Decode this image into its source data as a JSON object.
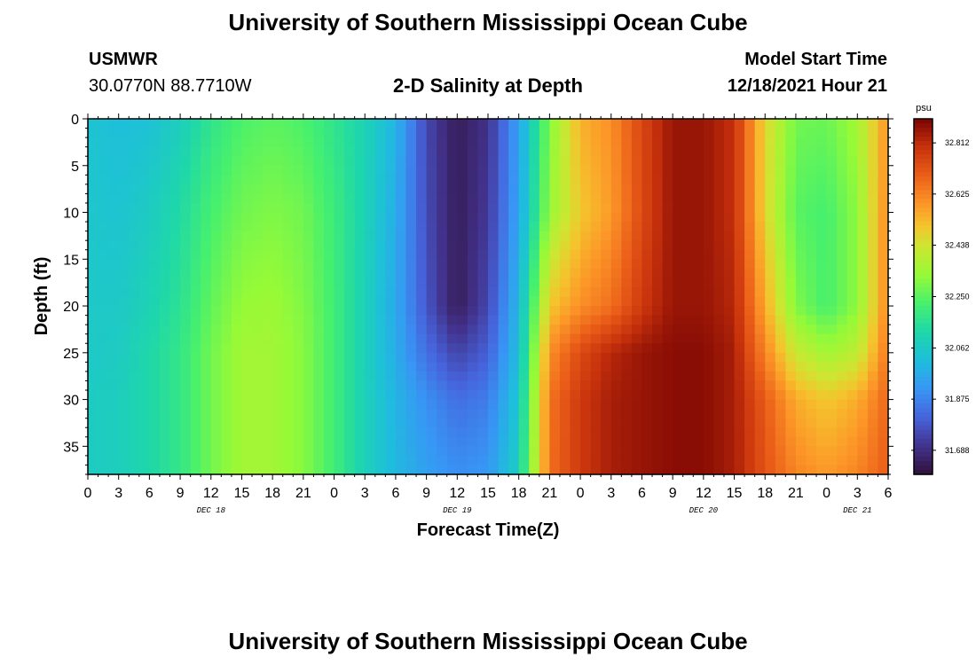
{
  "page": {
    "title_top": "University of Southern Mississippi Ocean Cube",
    "title_bottom": "University of Southern Mississippi Ocean Cube",
    "station": "USMWR",
    "coords": "30.0770N  88.7710W",
    "subtitle": "2-D Salinity at Depth",
    "model_start_label": "Model Start Time",
    "model_start_value": "12/18/2021 Hour 21"
  },
  "chart_data": {
    "type": "heatmap",
    "title": "2-D Salinity at Depth",
    "xlabel": "Forecast Time(Z)",
    "ylabel": "Depth (ft)",
    "x_tick_labels": [
      "0",
      "3",
      "6",
      "9",
      "12",
      "15",
      "18",
      "21",
      "0",
      "3",
      "6",
      "9",
      "12",
      "15",
      "18",
      "21",
      "0",
      "3",
      "6",
      "9",
      "12",
      "15",
      "18",
      "21",
      "0",
      "3",
      "6"
    ],
    "x_range_hours": [
      0,
      78
    ],
    "date_labels": [
      {
        "label": "DEC 18",
        "hour": 12
      },
      {
        "label": "DEC 19",
        "hour": 36
      },
      {
        "label": "DEC 20",
        "hour": 60
      },
      {
        "label": "DEC 21",
        "hour": 75
      }
    ],
    "y_ticks": [
      0,
      5,
      10,
      15,
      20,
      25,
      30,
      35
    ],
    "y_range_ft": [
      0,
      38
    ],
    "colorbar": {
      "unit": "psu",
      "range": [
        31.6,
        32.9
      ],
      "ticks": [
        31.688,
        31.875,
        32.062,
        32.25,
        32.438,
        32.625,
        32.812
      ],
      "tick_labels": [
        "31.688",
        "31.875",
        "32.062",
        "32.250",
        "32.438",
        "32.625",
        "32.812"
      ]
    },
    "depths_ft": [
      0,
      10,
      20,
      25,
      30,
      38
    ],
    "hours": [
      0,
      3,
      6,
      9,
      12,
      15,
      18,
      21,
      24,
      27,
      30,
      33,
      36,
      39,
      42,
      45,
      48,
      51,
      54,
      57,
      60,
      63,
      66,
      69,
      72,
      75,
      78
    ],
    "salinity": [
      [
        32.04,
        32.02,
        32.03,
        32.08,
        32.17,
        32.23,
        32.25,
        32.23,
        32.17,
        32.1,
        31.99,
        31.75,
        31.64,
        31.7,
        31.94,
        32.3,
        32.54,
        32.6,
        32.75,
        32.86,
        32.86,
        32.8,
        32.47,
        32.28,
        32.27,
        32.35,
        32.6
      ],
      [
        32.05,
        32.04,
        32.07,
        32.13,
        32.22,
        32.28,
        32.3,
        32.28,
        32.2,
        32.1,
        31.97,
        31.76,
        31.64,
        31.72,
        31.95,
        32.33,
        32.5,
        32.58,
        32.74,
        32.86,
        32.86,
        32.8,
        32.47,
        32.25,
        32.22,
        32.32,
        32.62
      ],
      [
        32.06,
        32.06,
        32.1,
        32.16,
        32.26,
        32.33,
        32.34,
        32.3,
        32.21,
        32.09,
        31.96,
        31.78,
        31.64,
        31.75,
        32.0,
        32.5,
        32.6,
        32.66,
        32.78,
        32.86,
        32.86,
        32.82,
        32.55,
        32.3,
        32.22,
        32.32,
        32.62
      ],
      [
        32.06,
        32.07,
        32.12,
        32.18,
        32.28,
        32.35,
        32.35,
        32.31,
        32.21,
        32.09,
        31.97,
        31.83,
        31.74,
        31.8,
        32.02,
        32.6,
        32.74,
        32.82,
        32.86,
        32.88,
        32.88,
        32.84,
        32.62,
        32.42,
        32.35,
        32.4,
        32.65
      ],
      [
        32.07,
        32.08,
        32.12,
        32.18,
        32.28,
        32.35,
        32.35,
        32.31,
        32.21,
        32.09,
        31.99,
        31.9,
        31.83,
        31.86,
        32.05,
        32.65,
        32.78,
        32.84,
        32.86,
        32.88,
        32.88,
        32.84,
        32.7,
        32.55,
        32.5,
        32.55,
        32.68
      ],
      [
        32.07,
        32.08,
        32.12,
        32.18,
        32.28,
        32.35,
        32.35,
        32.31,
        32.21,
        32.09,
        32.0,
        31.94,
        31.9,
        31.92,
        32.08,
        32.66,
        32.78,
        32.84,
        32.86,
        32.88,
        32.88,
        32.84,
        32.72,
        32.62,
        32.58,
        32.62,
        32.7
      ]
    ]
  }
}
